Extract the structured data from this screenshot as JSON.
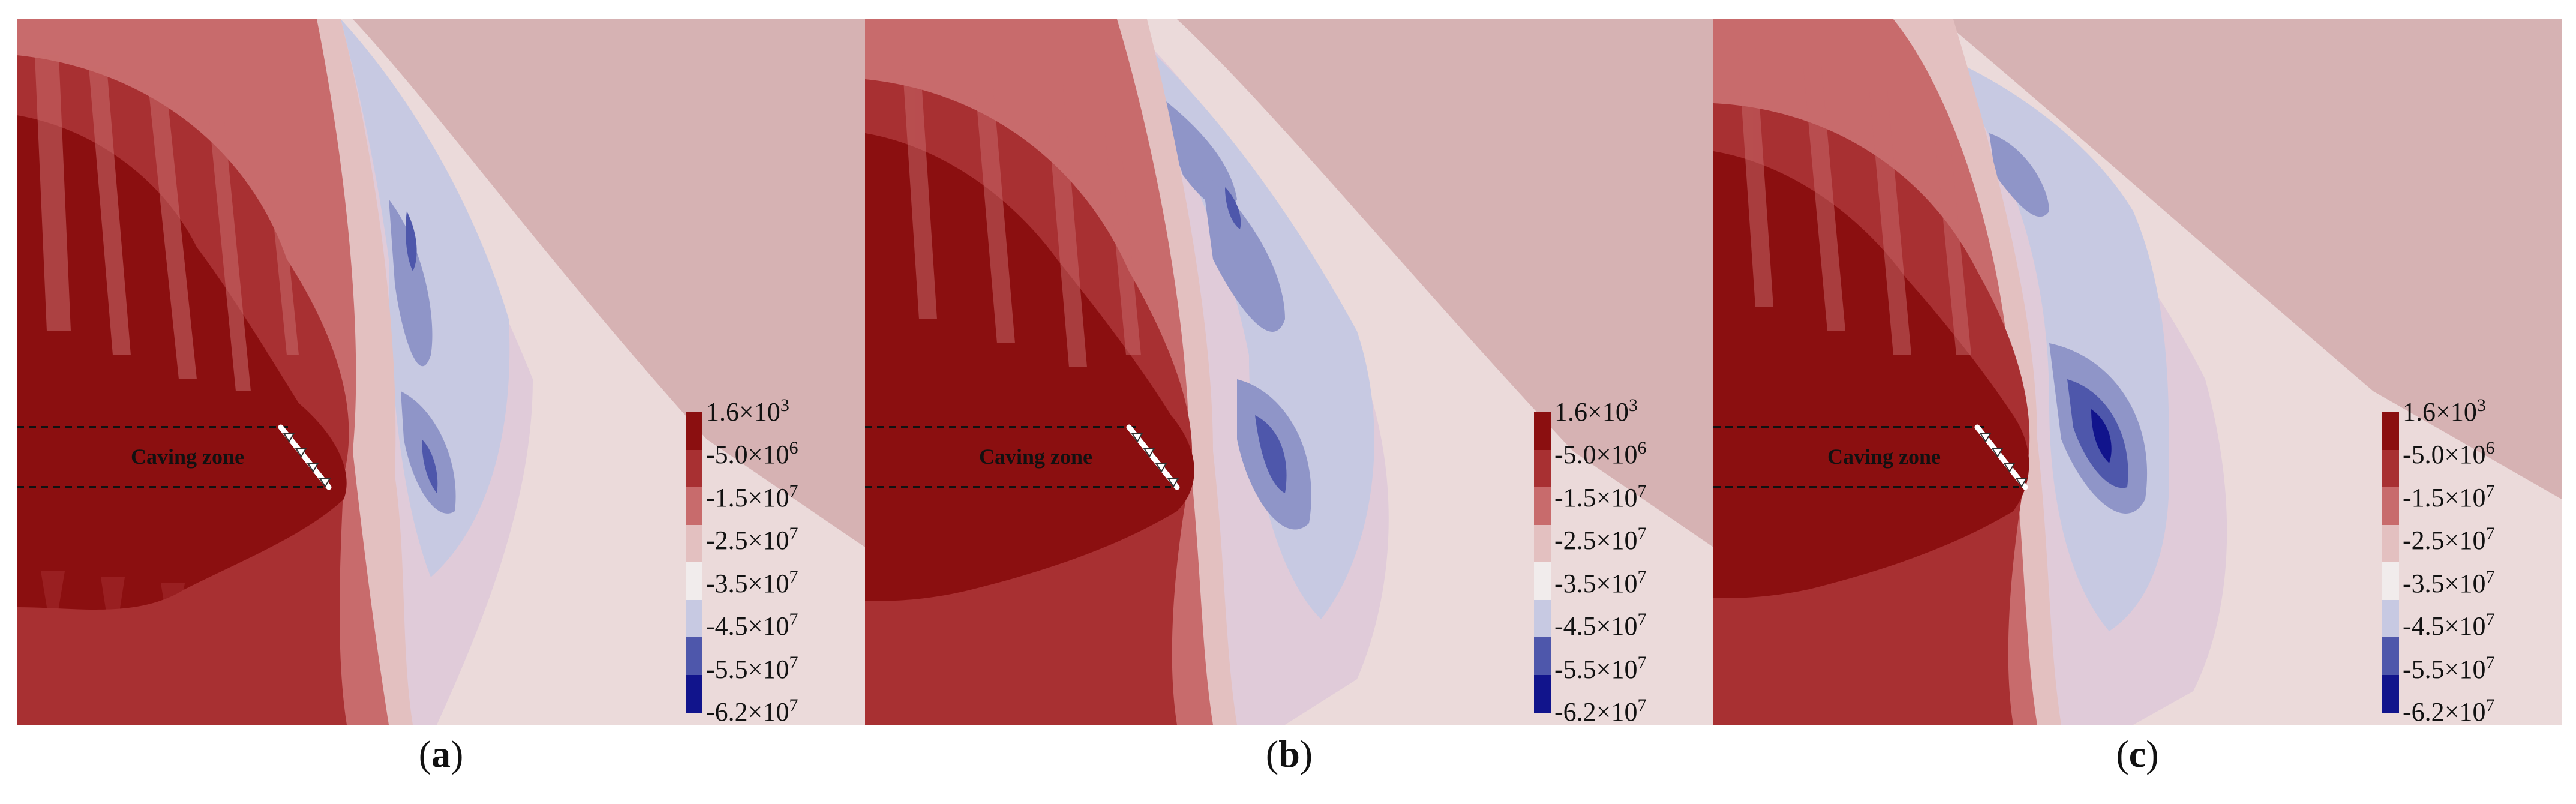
{
  "panels": [
    {
      "id": "a",
      "caption_letter": "a"
    },
    {
      "id": "b",
      "caption_letter": "b"
    },
    {
      "id": "c",
      "caption_letter": "c"
    }
  ],
  "annotation": {
    "caving_zone": "Caving zone"
  },
  "legend": {
    "labels": [
      {
        "mantissa": "1.6×10",
        "exp": "3"
      },
      {
        "mantissa": "-5.0×10",
        "exp": "6"
      },
      {
        "mantissa": "-1.5×10",
        "exp": "7"
      },
      {
        "mantissa": "-2.5×10",
        "exp": "7"
      },
      {
        "mantissa": "-3.5×10",
        "exp": "7"
      },
      {
        "mantissa": "-4.5×10",
        "exp": "7"
      },
      {
        "mantissa": "-5.5×10",
        "exp": "7"
      },
      {
        "mantissa": "-6.2×10",
        "exp": "7"
      }
    ],
    "colors": [
      "#8b0f10",
      "#a83032",
      "#c86b6c",
      "#e3c0c0",
      "#f1ecec",
      "#c7c9e2",
      "#8f95c8",
      "#4e57ab",
      "#11148c"
    ]
  },
  "caption_parens": {
    "open": "(",
    "close": ")"
  }
}
